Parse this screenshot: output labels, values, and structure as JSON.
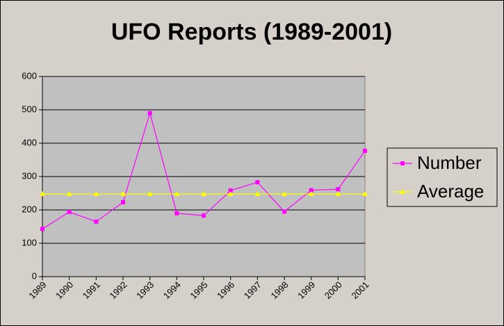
{
  "chart_data": {
    "type": "line",
    "title": "UFO Reports (1989-2001)",
    "categories": [
      "1989",
      "1990",
      "1991",
      "1992",
      "1993",
      "1994",
      "1995",
      "1996",
      "1997",
      "1998",
      "1999",
      "2000",
      "2001"
    ],
    "series": [
      {
        "name": "Number",
        "color": "#ff00ff",
        "marker": "square",
        "values": [
          143,
          194,
          165,
          223,
          490,
          190,
          183,
          258,
          283,
          195,
          259,
          262,
          377
        ]
      },
      {
        "name": "Average",
        "color": "#ffff00",
        "marker": "triangle",
        "values": [
          248,
          248,
          248,
          248,
          248,
          248,
          248,
          248,
          248,
          248,
          248,
          248,
          248
        ]
      }
    ],
    "ylim": [
      0,
      600
    ],
    "yticks": [
      0,
      100,
      200,
      300,
      400,
      500,
      600
    ],
    "grid": true,
    "legend": "right"
  }
}
